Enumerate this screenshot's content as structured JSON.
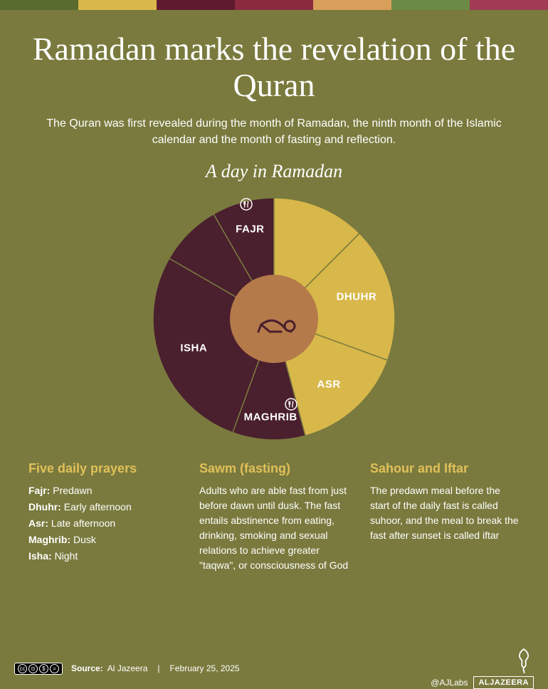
{
  "palette_bar": [
    "#5a6b2f",
    "#d8b84a",
    "#5f1a2e",
    "#8b2a3f",
    "#d89f5a",
    "#6b8a45",
    "#a03a55"
  ],
  "background_color": "#7a7a3e",
  "title": "Ramadan marks the revelation of the Quran",
  "description": "The Quran was first revealed during the month of Ramadan, the ninth month of the Islamic calendar and the month of fasting and reflection.",
  "subtitle": "A day in Ramadan",
  "chart": {
    "type": "pie-donut",
    "outer_radius": 170,
    "inner_radius": 62,
    "center_fill": "#b57a4a",
    "stroke_color": "#7a7a3e",
    "stroke_width": 1.5,
    "night_color": "#4a1f2e",
    "day_color": "#d8b84a",
    "segments": [
      {
        "name": "FAJR",
        "start_deg": -30,
        "end_deg": 0,
        "fill": "#4a1f2e",
        "label_r": 130,
        "label_angle": -15,
        "meal_icon": true,
        "icon_r": 150,
        "icon_angle": -15
      },
      {
        "name": "",
        "start_deg": 0,
        "end_deg": 45,
        "fill": "#d8b84a"
      },
      {
        "name": "DHUHR",
        "start_deg": 45,
        "end_deg": 110,
        "fill": "#d8b84a",
        "label_r": 120,
        "label_angle": 75
      },
      {
        "name": "ASR",
        "start_deg": 110,
        "end_deg": 165,
        "fill": "#d8b84a",
        "label_r": 120,
        "label_angle": 140
      },
      {
        "name": "MAGHRIB",
        "start_deg": 165,
        "end_deg": 200,
        "fill": "#4a1f2e",
        "label_r": 138,
        "label_angle": 182,
        "meal_icon": true,
        "icon_r": 138,
        "icon_angle": 170
      },
      {
        "name": "ISHA",
        "start_deg": 200,
        "end_deg": 300,
        "fill": "#4a1f2e",
        "label_r": 120,
        "label_angle": 250
      },
      {
        "name": "",
        "start_deg": 300,
        "end_deg": 330,
        "fill": "#4a1f2e"
      }
    ],
    "arrows": [
      {
        "angle": -28
      },
      {
        "angle": 42
      },
      {
        "angle": 108
      },
      {
        "angle": 163
      },
      {
        "angle": 198
      },
      {
        "angle": 298
      }
    ]
  },
  "columns": [
    {
      "title": "Five daily prayers",
      "prayers": [
        {
          "name": "Fajr:",
          "time": "Predawn"
        },
        {
          "name": "Dhuhr:",
          "time": "Early afternoon"
        },
        {
          "name": "Asr:",
          "time": "Late afternoon"
        },
        {
          "name": "Maghrib:",
          "time": "Dusk"
        },
        {
          "name": "Isha:",
          "time": "Night"
        }
      ]
    },
    {
      "title": "Sawm (fasting)",
      "body": "Adults who are able fast from just before dawn until dusk. The fast entails abstinence from eating, drinking, smoking and sexual relations to achieve greater \"taqwa\", or consciousness of God"
    },
    {
      "title": "Sahour and Iftar",
      "body": "The predawn meal before the start of the daily fast is called suhoor, and the meal to break the fast after sunset is called iftar"
    }
  ],
  "footer": {
    "source_label": "Source:",
    "source": "Al Jazeera",
    "date": "February 25, 2025",
    "handle": "@AJLabs",
    "brand": "ALJAZEERA"
  }
}
